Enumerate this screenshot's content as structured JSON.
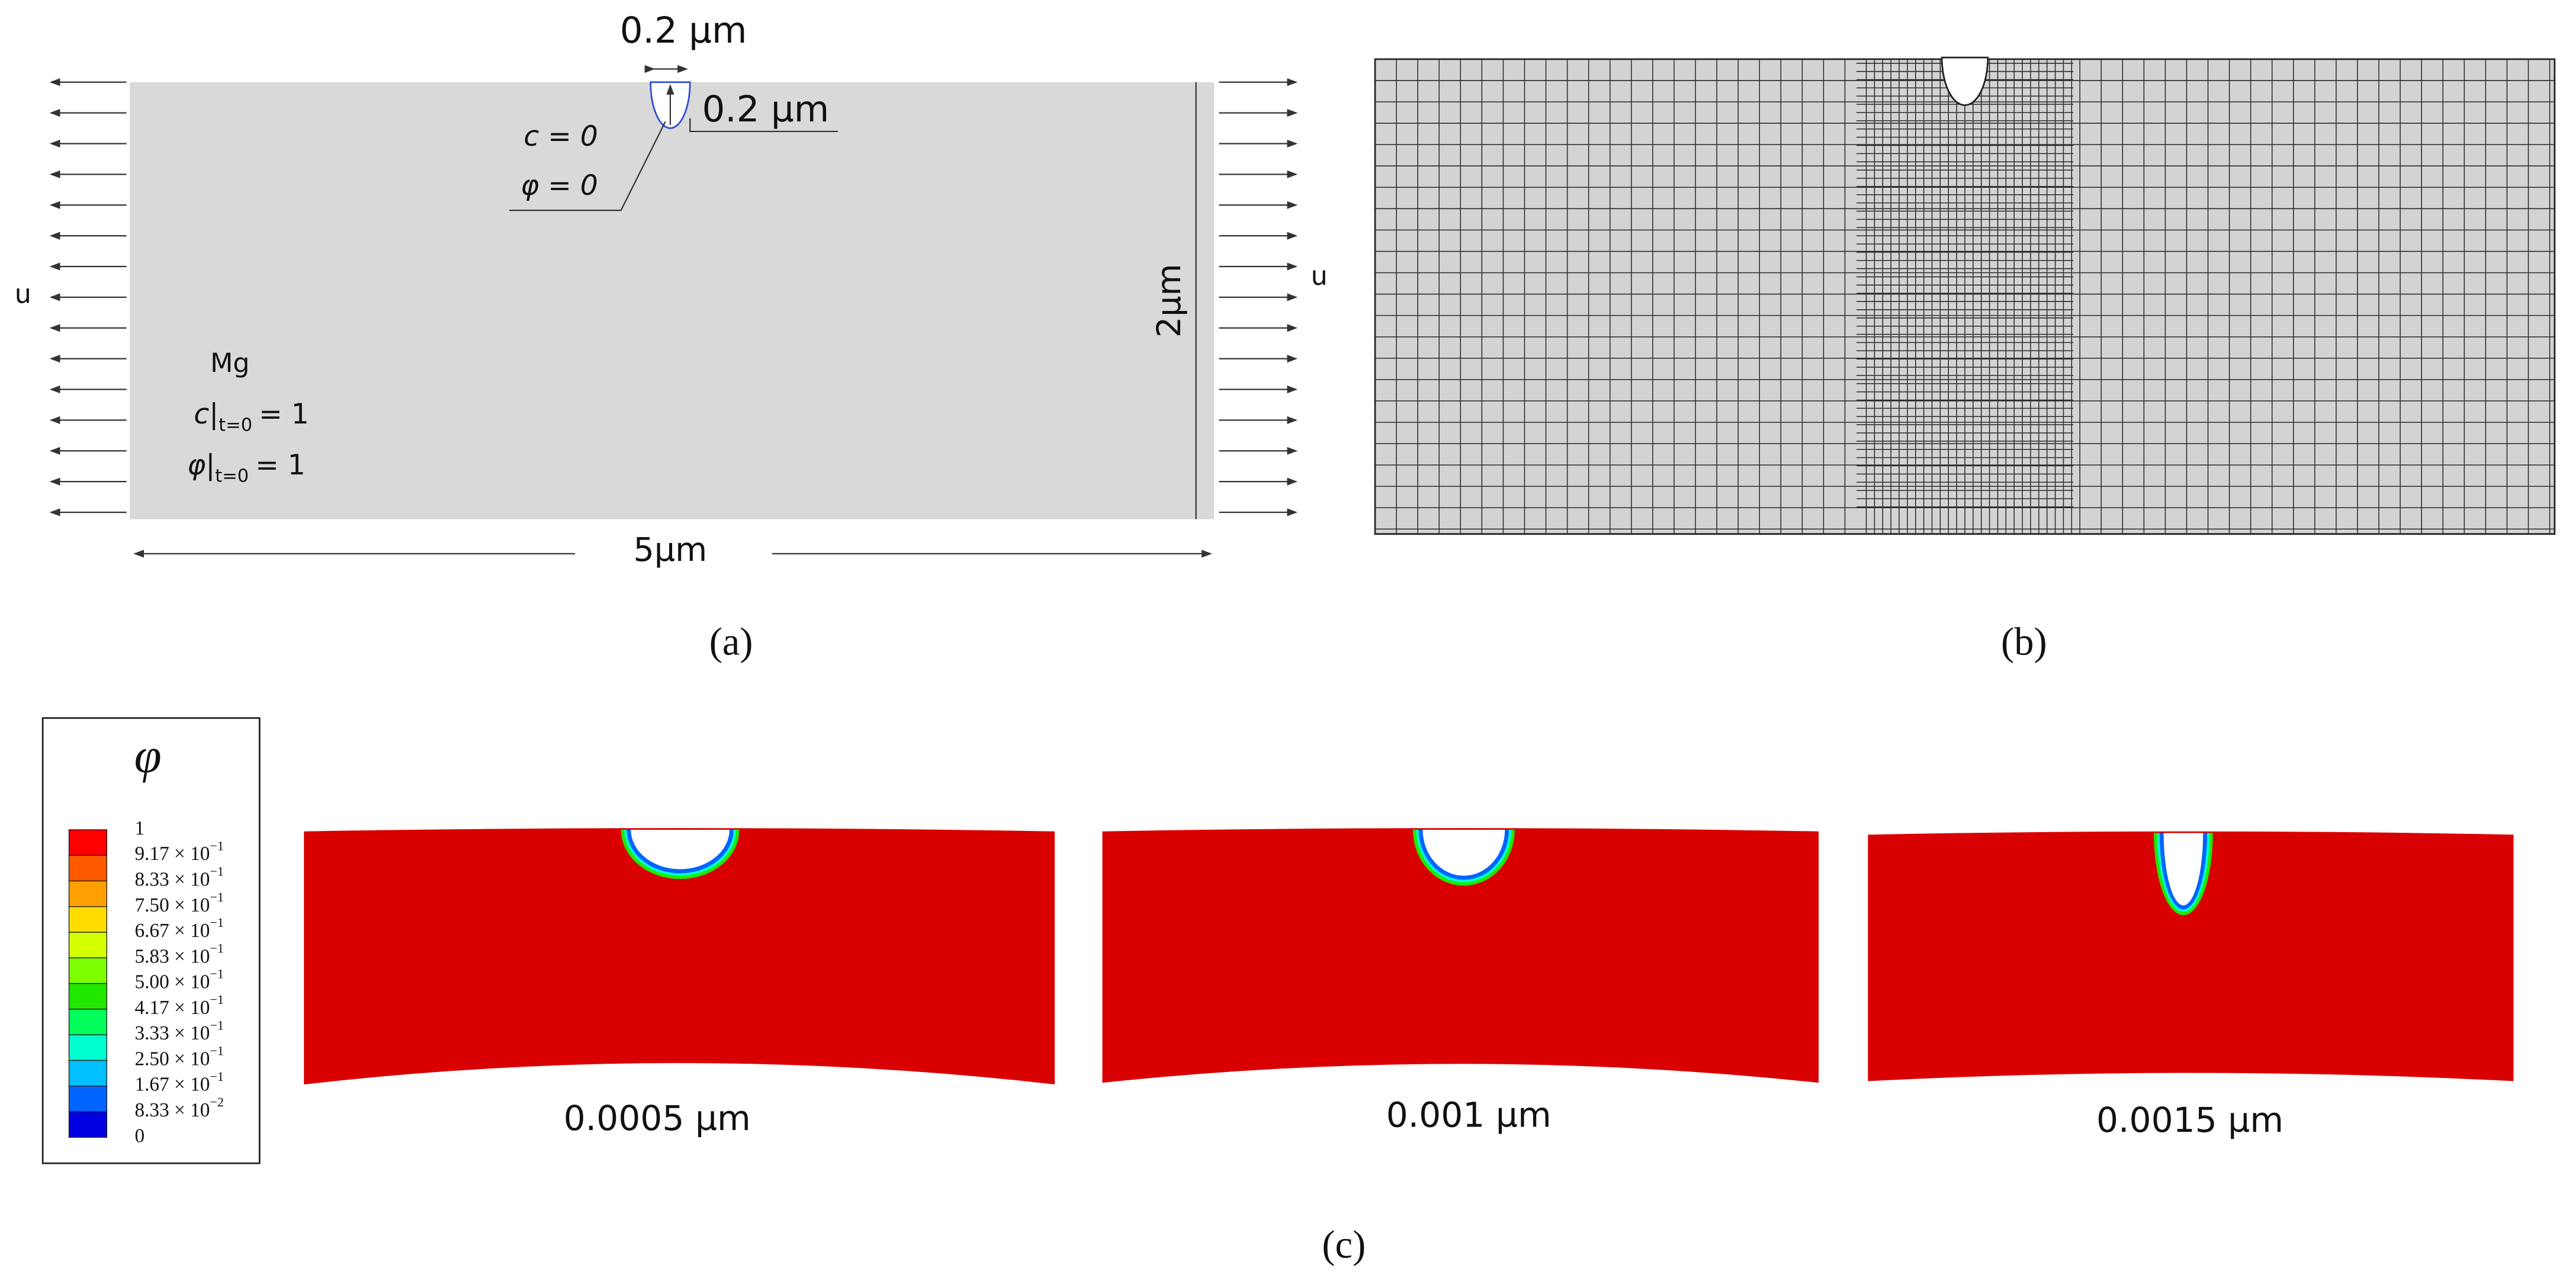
{
  "panel_a": {
    "label": "(a)",
    "notch_width": "0.2 µm",
    "notch_depth": "0.2 µm",
    "notch_conditions": [
      "c = 0",
      "φ = 0"
    ],
    "load_left": "u",
    "load_right": "u",
    "height": "2µm",
    "width": "5µm",
    "material": "Mg",
    "initial_conditions": [
      {
        "symbol": "c",
        "subscript": "t=0",
        "rest": "= 1"
      },
      {
        "symbol": "φ",
        "subscript": "t=0",
        "rest": "= 1"
      }
    ]
  },
  "panel_b": {
    "label": "(b)"
  },
  "panel_c": {
    "label": "(c)",
    "legend": {
      "title": "φ",
      "colors": [
        "#ff0000",
        "#ff5a00",
        "#ffa000",
        "#ffdc00",
        "#d4ff00",
        "#7cff00",
        "#22e800",
        "#00ff5a",
        "#00ffd0",
        "#00c0ff",
        "#0064ff",
        "#0000e0"
      ],
      "labels": [
        {
          "base": "1"
        },
        {
          "base": "9.17 × 10",
          "sup": "−1"
        },
        {
          "base": "8.33 × 10",
          "sup": "−1"
        },
        {
          "base": "7.50 × 10",
          "sup": "−1"
        },
        {
          "base": "6.67 × 10",
          "sup": "−1"
        },
        {
          "base": "5.83 × 10",
          "sup": "−1"
        },
        {
          "base": "5.00 × 10",
          "sup": "−1"
        },
        {
          "base": "4.17 × 10",
          "sup": "−1"
        },
        {
          "base": "3.33 × 10",
          "sup": "−1"
        },
        {
          "base": "2.50 × 10",
          "sup": "−1"
        },
        {
          "base": "1.67 × 10",
          "sup": "−1"
        },
        {
          "base": "8.33 × 10",
          "sup": "−2"
        },
        {
          "base": "0"
        }
      ]
    },
    "snapshots": [
      "0.0005 µm",
      "0.001 µm",
      "0.0015 µm"
    ]
  }
}
